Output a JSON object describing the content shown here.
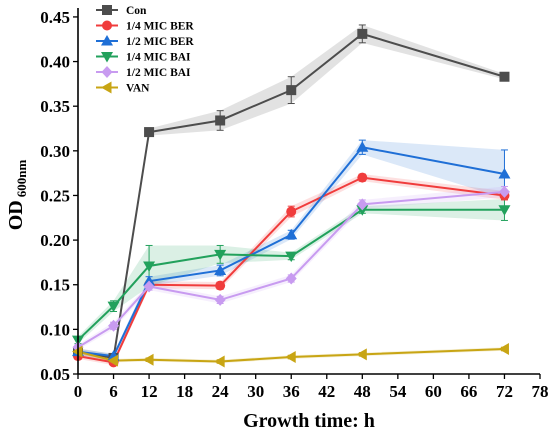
{
  "chart_data": {
    "type": "line",
    "xlabel": "Growth time: h",
    "ylabel_main": "OD",
    "ylabel_sub": "600nm",
    "xlim": [
      0,
      78
    ],
    "ylim": [
      0.05,
      0.46
    ],
    "xticks": [
      0,
      6,
      12,
      18,
      24,
      30,
      36,
      42,
      48,
      54,
      60,
      66,
      72,
      78
    ],
    "yticks": [
      "0.05",
      "0.10",
      "0.15",
      "0.20",
      "0.25",
      "0.30",
      "0.35",
      "0.40",
      "0.45"
    ],
    "legend_position": "top-left",
    "x": [
      0,
      6,
      12,
      24,
      36,
      48,
      72
    ],
    "series": [
      {
        "name": "Con",
        "color": "#4d4d4d",
        "marker": "square",
        "values": [
          0.075,
          0.068,
          0.321,
          0.334,
          0.368,
          0.431,
          0.383
        ],
        "errors": [
          0.004,
          0.004,
          0.004,
          0.011,
          0.015,
          0.01,
          0.003
        ]
      },
      {
        "name": "1/4 MIC BER",
        "color": "#f03c3c",
        "marker": "circle",
        "values": [
          0.07,
          0.063,
          0.15,
          0.149,
          0.232,
          0.27,
          0.25
        ],
        "errors": [
          0.003,
          0.003,
          0.004,
          0.004,
          0.006,
          0.004,
          0.005
        ]
      },
      {
        "name": "1/2 MIC BER",
        "color": "#1f6fd6",
        "marker": "triangle-up",
        "values": [
          0.075,
          0.07,
          0.154,
          0.166,
          0.206,
          0.304,
          0.274
        ],
        "errors": [
          0.003,
          0.003,
          0.005,
          0.006,
          0.005,
          0.008,
          0.027
        ]
      },
      {
        "name": "1/4 MIC BAI",
        "color": "#22a15c",
        "marker": "triangle-down",
        "values": [
          0.088,
          0.126,
          0.171,
          0.184,
          0.182,
          0.234,
          0.234
        ],
        "errors": [
          0.004,
          0.006,
          0.023,
          0.01,
          0.004,
          0.004,
          0.012
        ]
      },
      {
        "name": "1/2 MIC BAI",
        "color": "#c89bf0",
        "marker": "diamond",
        "values": [
          0.08,
          0.104,
          0.148,
          0.133,
          0.157,
          0.24,
          0.254
        ],
        "errors": [
          0.003,
          0.004,
          0.004,
          0.004,
          0.004,
          0.005,
          0.006
        ]
      },
      {
        "name": "VAN",
        "color": "#c8a514",
        "marker": "triangle-left",
        "values": [
          0.075,
          0.065,
          0.066,
          0.064,
          0.069,
          0.072,
          0.078
        ],
        "errors": [
          0.002,
          0.002,
          0.002,
          0.002,
          0.002,
          0.002,
          0.002
        ]
      }
    ]
  }
}
